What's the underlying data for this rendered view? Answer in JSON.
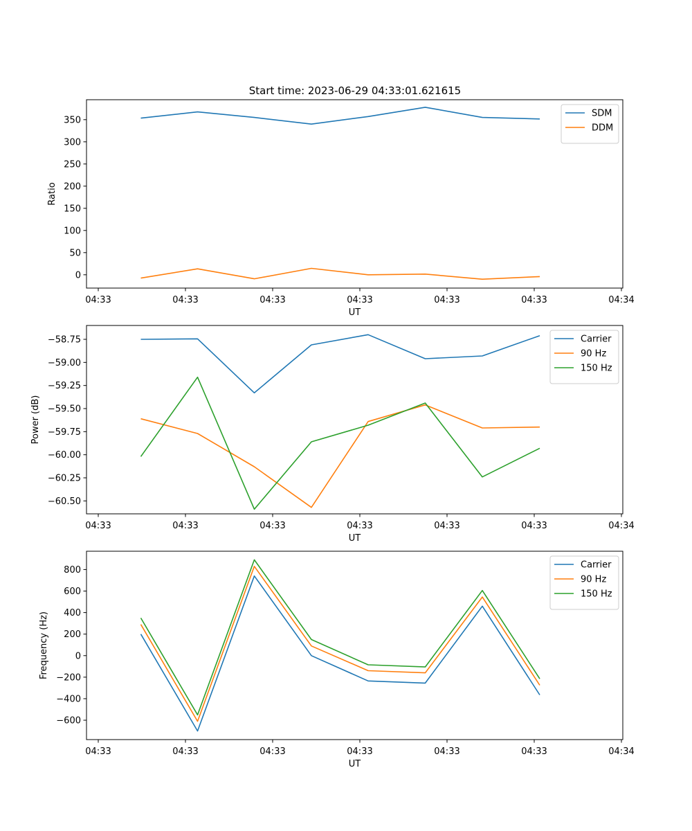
{
  "title": "Start time: 2023-06-29 04:33:01.621615",
  "chart_data": [
    {
      "type": "line",
      "xlabel": "UT",
      "ylabel": "Ratio",
      "x_ticks": [
        "04:33",
        "04:33",
        "04:33",
        "04:33",
        "04:33",
        "04:33",
        "04:34"
      ],
      "y_ticks": [
        0,
        50,
        100,
        150,
        200,
        250,
        300,
        350
      ],
      "ylim": [
        -30,
        395
      ],
      "legend": "top-right",
      "grid": false,
      "series": [
        {
          "name": "SDM",
          "color": "#1f77b4",
          "values": [
            353.5,
            367.5,
            355.0,
            340.0,
            357.0,
            378.0,
            355.0,
            351.5
          ]
        },
        {
          "name": "DDM",
          "color": "#ff7f0e",
          "values": [
            -7.5,
            13.5,
            -9.0,
            14.5,
            0.0,
            1.5,
            -10.0,
            -4.0
          ]
        }
      ]
    },
    {
      "type": "line",
      "xlabel": "UT",
      "ylabel": "Power (dB)",
      "x_ticks": [
        "04:33",
        "04:33",
        "04:33",
        "04:33",
        "04:33",
        "04:33",
        "04:34"
      ],
      "y_ticks": [
        "−58.75",
        "−59.00",
        "−59.25",
        "−59.50",
        "−59.75",
        "−60.00",
        "−60.25",
        "−60.50"
      ],
      "y_tick_values": [
        -58.75,
        -59.0,
        -59.25,
        -59.5,
        -59.75,
        -60.0,
        -60.25,
        -60.5
      ],
      "ylim": [
        -60.64,
        -58.6
      ],
      "legend": "top-right",
      "grid": false,
      "series": [
        {
          "name": "Carrier",
          "color": "#1f77b4",
          "values": [
            -58.75,
            -58.745,
            -59.33,
            -58.81,
            -58.7,
            -58.96,
            -58.93,
            -58.71
          ]
        },
        {
          "name": "90 Hz",
          "color": "#ff7f0e",
          "values": [
            -59.61,
            -59.77,
            -60.13,
            -60.57,
            -59.64,
            -59.46,
            -59.71,
            -59.7
          ]
        },
        {
          "name": "150 Hz",
          "color": "#2ca02c",
          "values": [
            -60.02,
            -59.16,
            -60.59,
            -59.86,
            -59.68,
            -59.44,
            -60.24,
            -59.93
          ]
        }
      ]
    },
    {
      "type": "line",
      "xlabel": "UT",
      "ylabel": "Frequency (Hz)",
      "x_ticks": [
        "04:33",
        "04:33",
        "04:33",
        "04:33",
        "04:33",
        "04:33",
        "04:34"
      ],
      "y_ticks": [
        "−600",
        "−400",
        "−200",
        "0",
        "200",
        "400",
        "600",
        "800"
      ],
      "y_tick_values": [
        -600,
        -400,
        -200,
        0,
        200,
        400,
        600,
        800
      ],
      "ylim": [
        -780,
        970
      ],
      "legend": "top-right",
      "grid": false,
      "series": [
        {
          "name": "Carrier",
          "color": "#1f77b4",
          "values": [
            200,
            -700,
            740,
            0,
            -235,
            -255,
            460,
            -365
          ]
        },
        {
          "name": "90 Hz",
          "color": "#ff7f0e",
          "values": [
            290,
            -610,
            830,
            90,
            -140,
            -160,
            545,
            -275
          ]
        },
        {
          "name": "150 Hz",
          "color": "#2ca02c",
          "values": [
            350,
            -550,
            890,
            150,
            -85,
            -105,
            605,
            -215
          ]
        }
      ]
    }
  ]
}
